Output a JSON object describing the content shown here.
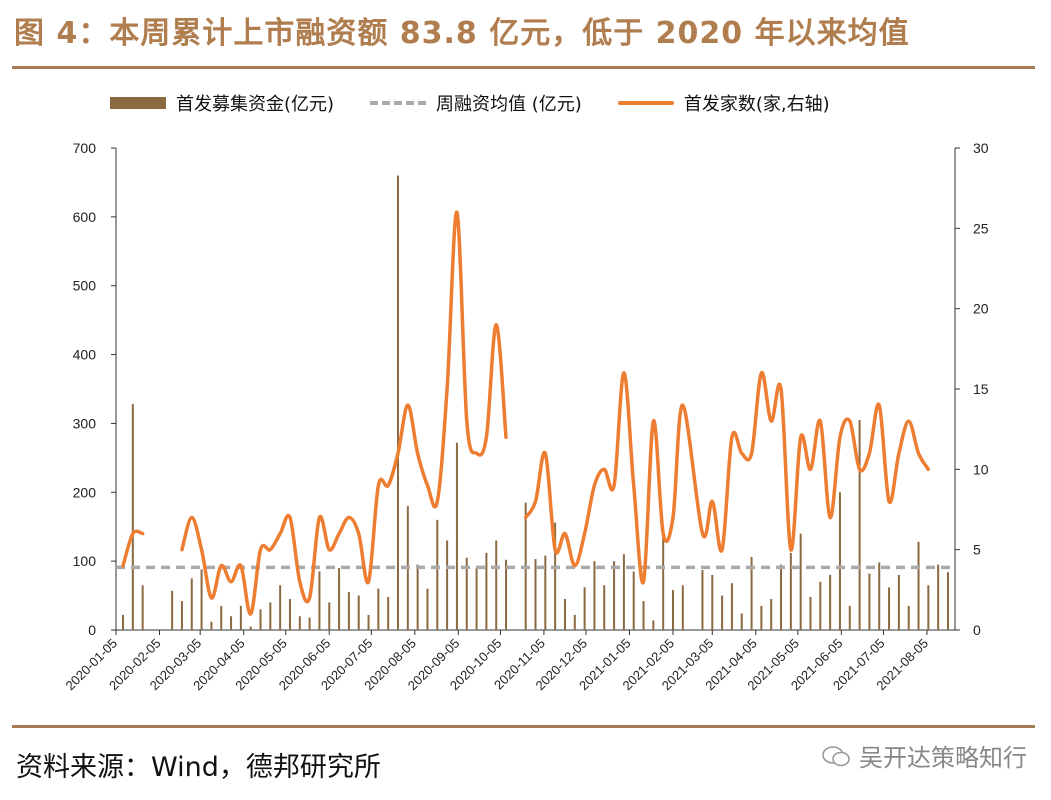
{
  "header": {
    "title": "图 4：本周累计上市融资额 83.8 亿元，低于 2020 年以来均值"
  },
  "legend": {
    "bar_label": "首发募集资金(亿元)",
    "dash_label": "周融资均值 (亿元)",
    "line_label": "首发家数(家,右轴)"
  },
  "colors": {
    "bar": "#8b6a42",
    "dash": "#aaaaaa",
    "line": "#ed7d31",
    "title": "#b07d4f",
    "rule": "#a57a55"
  },
  "footer": {
    "source": "资料来源：Wind，德邦研究所",
    "watermark": "吴开达策略知行"
  },
  "chart_data": {
    "type": "bar+line",
    "x_tick_labels": [
      "2020-01-05",
      "2020-02-05",
      "2020-03-05",
      "2020-04-05",
      "2020-05-05",
      "2020-06-05",
      "2020-07-05",
      "2020-08-05",
      "2020-09-05",
      "2020-10-05",
      "2020-11-05",
      "2020-12-05",
      "2021-01-05",
      "2021-02-05",
      "2021-03-05",
      "2021-04-05",
      "2021-05-05",
      "2021-06-05",
      "2021-07-05",
      "2021-08-05"
    ],
    "x_range": [
      "2020-01-05",
      "2021-08-25"
    ],
    "y_left": {
      "min": 0,
      "max": 700,
      "ticks": [
        0,
        100,
        200,
        300,
        400,
        500,
        600,
        700
      ]
    },
    "y_right": {
      "min": 0,
      "max": 30,
      "ticks": [
        0,
        5,
        10,
        15,
        20,
        25,
        30
      ]
    },
    "series": [
      {
        "name": "首发募集资金(亿元)",
        "type": "bar",
        "axis": "left",
        "points": [
          [
            "2020-01-10",
            22
          ],
          [
            "2020-01-17",
            328
          ],
          [
            "2020-01-24",
            65
          ],
          [
            "2020-02-14",
            57
          ],
          [
            "2020-02-21",
            42
          ],
          [
            "2020-02-28",
            75
          ],
          [
            "2020-03-06",
            88
          ],
          [
            "2020-03-13",
            12
          ],
          [
            "2020-03-20",
            35
          ],
          [
            "2020-03-27",
            20
          ],
          [
            "2020-04-03",
            35
          ],
          [
            "2020-04-10",
            5
          ],
          [
            "2020-04-17",
            30
          ],
          [
            "2020-04-24",
            40
          ],
          [
            "2020-05-01",
            65
          ],
          [
            "2020-05-08",
            45
          ],
          [
            "2020-05-15",
            20
          ],
          [
            "2020-05-22",
            18
          ],
          [
            "2020-05-29",
            85
          ],
          [
            "2020-06-05",
            40
          ],
          [
            "2020-06-12",
            90
          ],
          [
            "2020-06-19",
            55
          ],
          [
            "2020-06-26",
            50
          ],
          [
            "2020-07-03",
            22
          ],
          [
            "2020-07-10",
            60
          ],
          [
            "2020-07-17",
            48
          ],
          [
            "2020-07-24",
            660
          ],
          [
            "2020-07-31",
            180
          ],
          [
            "2020-08-07",
            95
          ],
          [
            "2020-08-14",
            60
          ],
          [
            "2020-08-21",
            160
          ],
          [
            "2020-08-28",
            130
          ],
          [
            "2020-09-04",
            272
          ],
          [
            "2020-09-11",
            105
          ],
          [
            "2020-09-18",
            90
          ],
          [
            "2020-09-25",
            112
          ],
          [
            "2020-10-02",
            130
          ],
          [
            "2020-10-09",
            102
          ],
          [
            "2020-10-23",
            185
          ],
          [
            "2020-10-30",
            103
          ],
          [
            "2020-11-06",
            108
          ],
          [
            "2020-11-13",
            156
          ],
          [
            "2020-11-20",
            45
          ],
          [
            "2020-11-27",
            22
          ],
          [
            "2020-12-04",
            62
          ],
          [
            "2020-12-11",
            100
          ],
          [
            "2020-12-18",
            65
          ],
          [
            "2020-12-25",
            100
          ],
          [
            "2021-01-01",
            110
          ],
          [
            "2021-01-08",
            85
          ],
          [
            "2021-01-15",
            42
          ],
          [
            "2021-01-22",
            14
          ],
          [
            "2021-01-29",
            135
          ],
          [
            "2021-02-05",
            58
          ],
          [
            "2021-02-12",
            65
          ],
          [
            "2021-02-26",
            87
          ],
          [
            "2021-03-05",
            80
          ],
          [
            "2021-03-12",
            50
          ],
          [
            "2021-03-19",
            68
          ],
          [
            "2021-03-26",
            24
          ],
          [
            "2021-04-02",
            106
          ],
          [
            "2021-04-09",
            35
          ],
          [
            "2021-04-16",
            45
          ],
          [
            "2021-04-23",
            95
          ],
          [
            "2021-04-30",
            112
          ],
          [
            "2021-05-07",
            140
          ],
          [
            "2021-05-14",
            48
          ],
          [
            "2021-05-21",
            70
          ],
          [
            "2021-05-28",
            80
          ],
          [
            "2021-06-04",
            200
          ],
          [
            "2021-06-11",
            35
          ],
          [
            "2021-06-18",
            305
          ],
          [
            "2021-06-25",
            82
          ],
          [
            "2021-07-02",
            98
          ],
          [
            "2021-07-09",
            62
          ],
          [
            "2021-07-16",
            80
          ],
          [
            "2021-07-23",
            35
          ],
          [
            "2021-07-30",
            128
          ],
          [
            "2021-08-06",
            65
          ],
          [
            "2021-08-13",
            95
          ],
          [
            "2021-08-20",
            84
          ]
        ]
      },
      {
        "name": "周融资均值 (亿元)",
        "type": "dashed-line",
        "axis": "left",
        "value": 91
      },
      {
        "name": "首发家数(家,右轴)",
        "type": "line",
        "axis": "right",
        "segments": [
          [
            [
              "2020-01-10",
              4
            ],
            [
              "2020-01-17",
              6
            ],
            [
              "2020-01-24",
              6
            ]
          ],
          [
            [
              "2020-02-21",
              5
            ],
            [
              "2020-02-28",
              7
            ],
            [
              "2020-03-06",
              5
            ],
            [
              "2020-03-13",
              2
            ],
            [
              "2020-03-20",
              4
            ],
            [
              "2020-03-27",
              3
            ],
            [
              "2020-04-03",
              4
            ],
            [
              "2020-04-10",
              1
            ],
            [
              "2020-04-17",
              5
            ],
            [
              "2020-04-24",
              5
            ],
            [
              "2020-05-01",
              6
            ],
            [
              "2020-05-08",
              7
            ],
            [
              "2020-05-15",
              3
            ],
            [
              "2020-05-22",
              2
            ],
            [
              "2020-05-29",
              7
            ],
            [
              "2020-06-05",
              5
            ],
            [
              "2020-06-12",
              6
            ],
            [
              "2020-06-19",
              7
            ],
            [
              "2020-06-26",
              6
            ],
            [
              "2020-07-03",
              3
            ],
            [
              "2020-07-10",
              9
            ],
            [
              "2020-07-17",
              9
            ],
            [
              "2020-07-24",
              11
            ],
            [
              "2020-07-31",
              14
            ],
            [
              "2020-08-07",
              11
            ],
            [
              "2020-08-14",
              9
            ],
            [
              "2020-08-21",
              8
            ],
            [
              "2020-08-28",
              15
            ],
            [
              "2020-09-04",
              26
            ],
            [
              "2020-09-11",
              13
            ],
            [
              "2020-09-18",
              11
            ],
            [
              "2020-09-25",
              12
            ],
            [
              "2020-10-02",
              19
            ],
            [
              "2020-10-09",
              12
            ]
          ],
          [
            [
              "2020-10-23",
              7
            ],
            [
              "2020-10-30",
              8
            ],
            [
              "2020-11-06",
              11
            ],
            [
              "2020-11-13",
              5
            ],
            [
              "2020-11-20",
              6
            ],
            [
              "2020-11-27",
              4
            ],
            [
              "2020-12-04",
              6
            ],
            [
              "2020-12-11",
              9
            ],
            [
              "2020-12-18",
              10
            ],
            [
              "2020-12-25",
              9
            ],
            [
              "2021-01-01",
              16
            ],
            [
              "2021-01-08",
              9
            ],
            [
              "2021-01-15",
              3
            ],
            [
              "2021-01-22",
              13
            ],
            [
              "2021-01-29",
              6
            ],
            [
              "2021-02-05",
              7
            ],
            [
              "2021-02-12",
              14
            ],
            [
              "2021-02-26",
              6
            ],
            [
              "2021-03-05",
              8
            ],
            [
              "2021-03-12",
              5
            ],
            [
              "2021-03-19",
              12
            ],
            [
              "2021-03-26",
              11
            ],
            [
              "2021-04-02",
              11
            ],
            [
              "2021-04-09",
              16
            ],
            [
              "2021-04-16",
              13
            ],
            [
              "2021-04-23",
              15
            ],
            [
              "2021-04-30",
              5
            ],
            [
              "2021-05-07",
              12
            ],
            [
              "2021-05-14",
              10
            ],
            [
              "2021-05-21",
              13
            ],
            [
              "2021-05-28",
              7
            ],
            [
              "2021-06-04",
              12
            ],
            [
              "2021-06-11",
              13
            ],
            [
              "2021-06-18",
              10
            ],
            [
              "2021-06-25",
              11
            ],
            [
              "2021-07-02",
              14
            ],
            [
              "2021-07-09",
              8
            ],
            [
              "2021-07-16",
              11
            ],
            [
              "2021-07-23",
              13
            ],
            [
              "2021-07-30",
              11
            ],
            [
              "2021-08-06",
              10
            ]
          ]
        ]
      }
    ],
    "grid": false,
    "legend_position": "top"
  }
}
